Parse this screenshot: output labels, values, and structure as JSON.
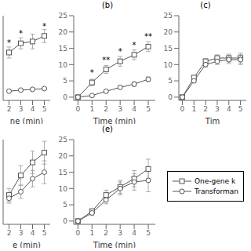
{
  "chart_data": [
    {
      "type": "line",
      "x_label": "ne (min)",
      "x": [
        2,
        3,
        4,
        5
      ],
      "xlim": [
        1.5,
        5.5
      ],
      "xticks": [
        2,
        3,
        4,
        5
      ],
      "ylim": [
        -1,
        22
      ],
      "tick_labels": "x",
      "grid": false,
      "series": [
        {
          "name": "One-gene k",
          "color": "#555555",
          "marker": "square",
          "values": [
            12.0,
            14.5,
            15.0,
            16.5
          ],
          "errors": [
            1.5,
            1.5,
            2.0,
            1.8
          ]
        },
        {
          "name": "Transforman",
          "color": "#555555",
          "marker": "circle",
          "values": [
            1.5,
            1.8,
            2.0,
            2.2
          ],
          "errors": [
            0.3,
            0.3,
            0.3,
            0.3
          ]
        }
      ],
      "annotations": [
        {
          "x": 2,
          "y": 12.0,
          "text": "*"
        },
        {
          "x": 3,
          "y": 14.5,
          "text": "*"
        },
        {
          "x": 5,
          "y": 16.5,
          "text": "*"
        }
      ]
    },
    {
      "type": "line",
      "title": "(b)",
      "x_label": "Time (min)",
      "x": [
        0,
        1,
        2,
        3,
        4,
        5
      ],
      "xlim": [
        -0.3,
        5.5
      ],
      "xticks": [
        0,
        1,
        2,
        3,
        4,
        5
      ],
      "ylim": [
        -1,
        25
      ],
      "yticks": [
        0,
        5,
        10,
        15,
        20,
        25
      ],
      "grid": false,
      "series": [
        {
          "name": "One-gene k",
          "color": "#555555",
          "marker": "square",
          "values": [
            0,
            4.5,
            8.5,
            11.0,
            13.0,
            15.5
          ],
          "errors": [
            0,
            1.0,
            1.2,
            1.5,
            1.5,
            1.5
          ]
        },
        {
          "name": "Transforman",
          "color": "#555555",
          "marker": "circle",
          "values": [
            0,
            0.5,
            1.8,
            3.0,
            4.0,
            5.5
          ],
          "errors": [
            0,
            0.3,
            0.5,
            0.5,
            0.7,
            0.7
          ]
        }
      ],
      "annotations": [
        {
          "x": 1,
          "y": 4.5,
          "text": "*"
        },
        {
          "x": 2,
          "y": 8.5,
          "text": "**"
        },
        {
          "x": 3,
          "y": 11.0,
          "text": "*"
        },
        {
          "x": 4,
          "y": 13.0,
          "text": "*"
        },
        {
          "x": 5,
          "y": 15.5,
          "text": "**"
        }
      ]
    },
    {
      "type": "line",
      "title": "(c)",
      "x_label": "Tim",
      "x": [
        0,
        1,
        2,
        3,
        4,
        5
      ],
      "xlim": [
        -0.3,
        5.5
      ],
      "xticks": [
        0,
        1,
        2,
        3,
        4,
        5
      ],
      "ylim": [
        -1,
        25
      ],
      "yticks": [
        0,
        5,
        10,
        15,
        20,
        25
      ],
      "grid": false,
      "series": [
        {
          "name": "One-gene k",
          "color": "#555555",
          "marker": "square",
          "values": [
            0,
            6.0,
            11.0,
            12.0,
            12.0,
            12.0
          ],
          "errors": [
            0,
            0.5,
            0.8,
            1.0,
            1.2,
            1.5
          ]
        },
        {
          "name": "Transforman",
          "color": "#555555",
          "marker": "circle",
          "values": [
            0,
            5.0,
            10.0,
            11.0,
            11.5,
            11.5
          ],
          "errors": [
            0,
            0.5,
            0.8,
            1.0,
            1.2,
            1.5
          ]
        }
      ],
      "annotations": []
    },
    {
      "type": "line",
      "x_label": "e (min)",
      "x": [
        2,
        3,
        4,
        5
      ],
      "xlim": [
        1.5,
        5.5
      ],
      "xticks": [
        2,
        3,
        4,
        5
      ],
      "ylim": [
        -1,
        25
      ],
      "tick_labels": "x",
      "grid": false,
      "series": [
        {
          "name": "One-gene k",
          "color": "#555555",
          "marker": "square",
          "values": [
            8.0,
            14.0,
            18.0,
            21.0
          ],
          "errors": [
            2.0,
            3.0,
            3.5,
            3.5
          ]
        },
        {
          "name": "Transforman",
          "color": "#555555",
          "marker": "circle",
          "values": [
            7.0,
            9.0,
            13.0,
            15.0
          ],
          "errors": [
            1.5,
            2.0,
            2.5,
            3.5
          ]
        }
      ],
      "annotations": []
    },
    {
      "type": "line",
      "title": "(e)",
      "x_label": "Time (min)",
      "x": [
        0,
        1,
        2,
        3,
        4,
        5
      ],
      "xlim": [
        -0.3,
        5.5
      ],
      "xticks": [
        0,
        1,
        2,
        3,
        4,
        5
      ],
      "ylim": [
        -1,
        25
      ],
      "yticks": [
        0,
        5,
        10,
        15,
        20,
        25
      ],
      "grid": false,
      "legend": "right",
      "series": [
        {
          "name": "One-gene k",
          "color": "#555555",
          "marker": "square",
          "values": [
            0,
            3.0,
            8.0,
            10.5,
            13.0,
            16.0
          ],
          "errors": [
            0,
            0.8,
            1.5,
            2.0,
            2.5,
            3.0
          ]
        },
        {
          "name": "Transforman",
          "color": "#555555",
          "marker": "circle",
          "values": [
            0,
            2.5,
            6.5,
            10.0,
            12.0,
            12.5
          ],
          "errors": [
            0,
            0.8,
            1.2,
            2.0,
            2.5,
            3.5
          ]
        }
      ],
      "annotations": []
    }
  ]
}
